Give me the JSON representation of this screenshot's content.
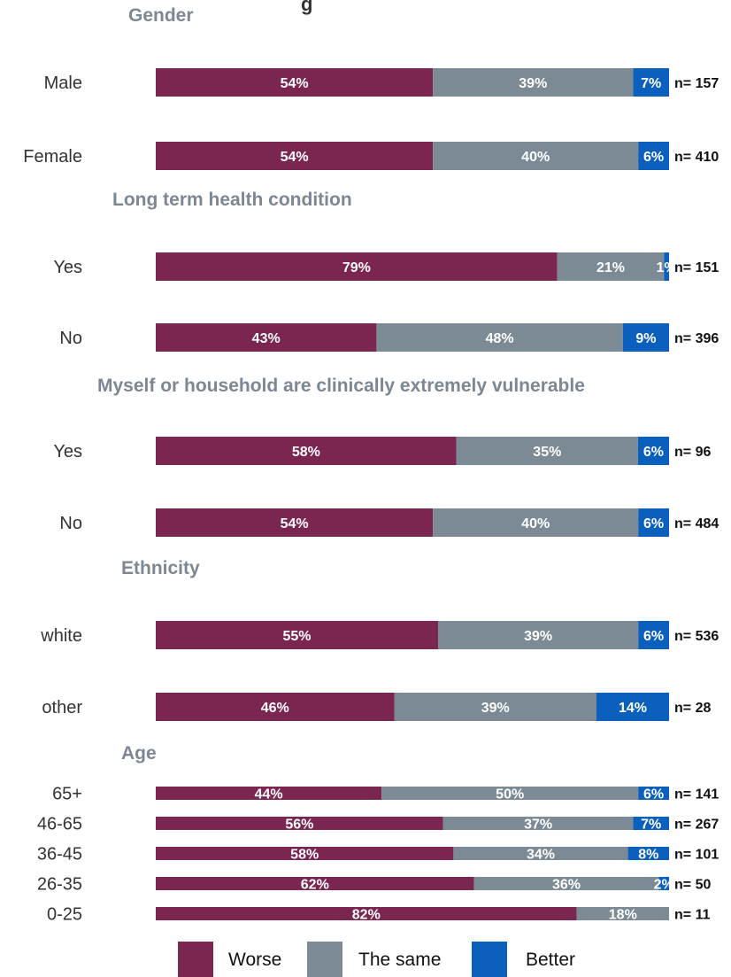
{
  "chart_data": {
    "type": "bar",
    "orientation": "horizontal-stacked-100",
    "title_fragment": "g",
    "colors": {
      "Worse": "#7b2650",
      "The same": "#7c8a96",
      "Better": "#0b5fbd"
    },
    "legend": {
      "position": "bottom",
      "entries": [
        "Worse",
        "The same",
        "Better"
      ]
    },
    "groups": [
      {
        "title": "Gender",
        "rows": [
          {
            "label": "Male",
            "values": [
              54,
              39,
              7
            ],
            "labels": [
              "54%",
              "39%",
              "7%"
            ],
            "n": "n= 157"
          },
          {
            "label": "Female",
            "values": [
              54,
              40,
              6
            ],
            "labels": [
              "54%",
              "40%",
              "6%"
            ],
            "n": "n= 410"
          }
        ]
      },
      {
        "title": "Long term health condition",
        "rows": [
          {
            "label": "Yes",
            "values": [
              79,
              21,
              1
            ],
            "labels": [
              "79%",
              "21%",
              "1%"
            ],
            "n": "n= 151"
          },
          {
            "label": "No",
            "values": [
              43,
              48,
              9
            ],
            "labels": [
              "43%",
              "48%",
              "9%"
            ],
            "n": "n= 396"
          }
        ]
      },
      {
        "title": "Myself or household are clinically extremely vulnerable",
        "rows": [
          {
            "label": "Yes",
            "values": [
              58,
              35,
              6
            ],
            "labels": [
              "58%",
              "35%",
              "6%"
            ],
            "n": "n= 96"
          },
          {
            "label": "No",
            "values": [
              54,
              40,
              6
            ],
            "labels": [
              "54%",
              "40%",
              "6%"
            ],
            "n": "n= 484"
          }
        ]
      },
      {
        "title": "Ethnicity",
        "rows": [
          {
            "label": "white",
            "values": [
              55,
              39,
              6
            ],
            "labels": [
              "55%",
              "39%",
              "6%"
            ],
            "n": "n= 536"
          },
          {
            "label": "other",
            "values": [
              46,
              39,
              14
            ],
            "labels": [
              "46%",
              "39%",
              "14%"
            ],
            "n": "n= 28"
          }
        ]
      },
      {
        "title": "Age",
        "rows": [
          {
            "label": "65+",
            "values": [
              44,
              50,
              6
            ],
            "labels": [
              "44%",
              "50%",
              "6%"
            ],
            "n": "n= 141"
          },
          {
            "label": "46-65",
            "values": [
              56,
              37,
              7
            ],
            "labels": [
              "56%",
              "37%",
              "7%"
            ],
            "n": "n= 267"
          },
          {
            "label": "36-45",
            "values": [
              58,
              34,
              8
            ],
            "labels": [
              "58%",
              "34%",
              "8%"
            ],
            "n": "n= 101"
          },
          {
            "label": "26-35",
            "values": [
              62,
              36,
              2
            ],
            "labels": [
              "62%",
              "36%",
              "2%"
            ],
            "n": "n= 50"
          },
          {
            "label": "0-25",
            "values": [
              82,
              18,
              0
            ],
            "labels": [
              "82%",
              "18%",
              ""
            ],
            "n": "n= 11"
          }
        ]
      }
    ]
  }
}
